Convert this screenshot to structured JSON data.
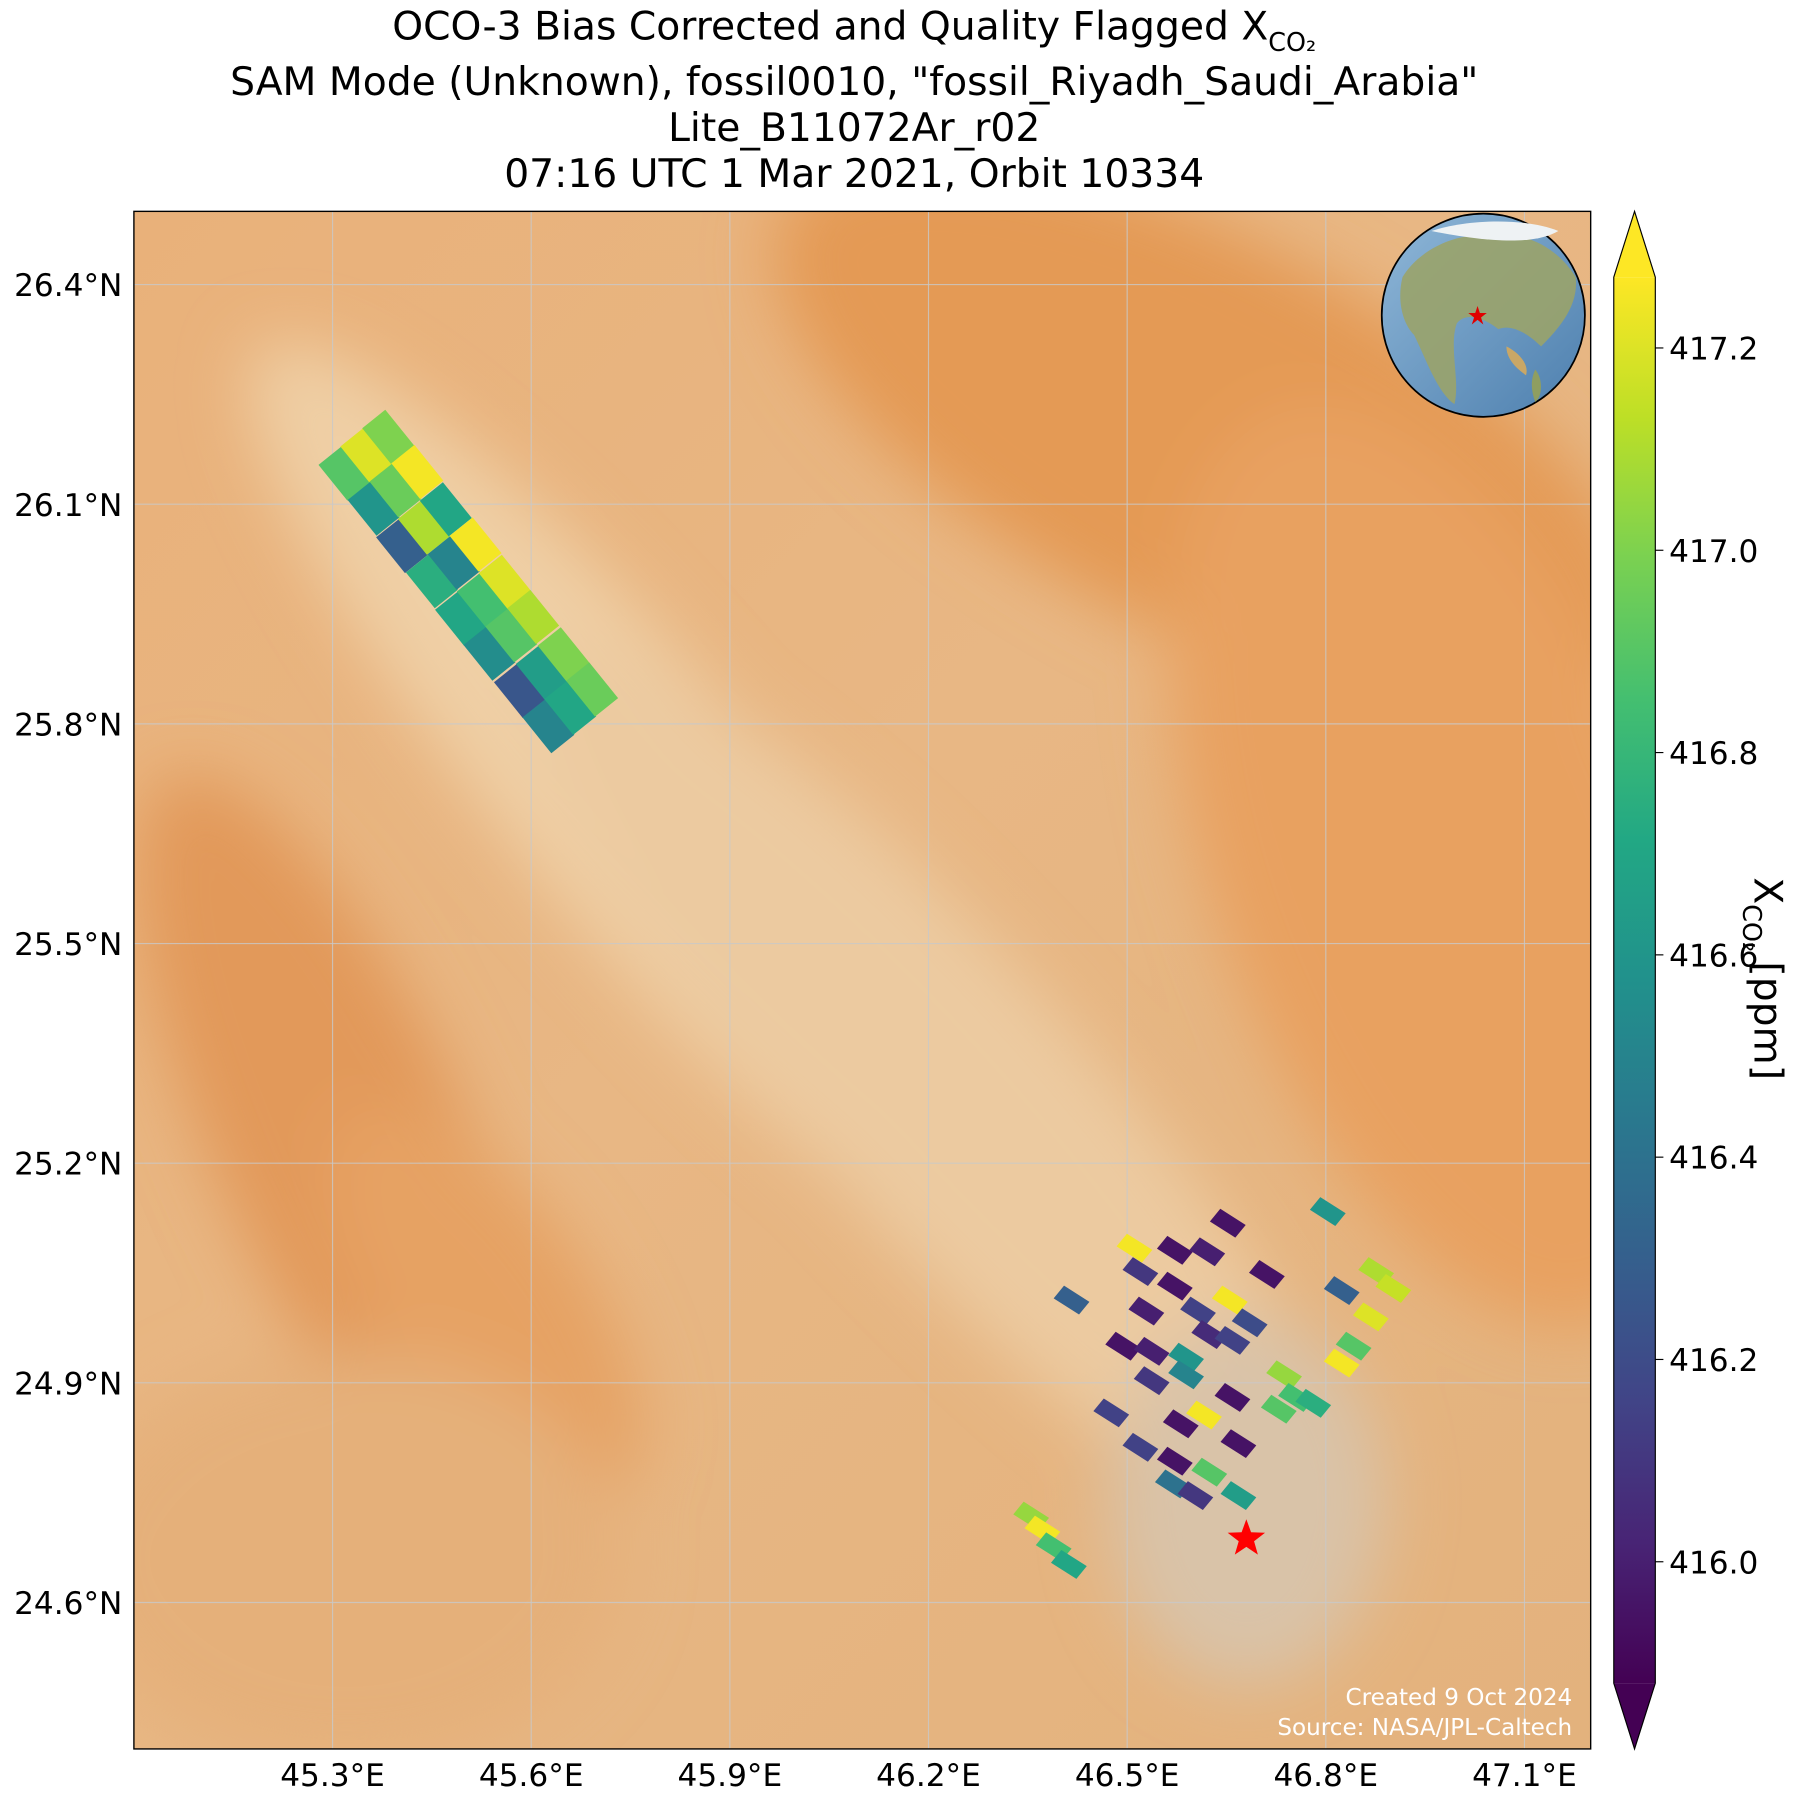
{
  "chart_data": {
    "type": "map",
    "title_lines": [
      "OCO-3 Bias Corrected and Quality Flagged X",
      "SAM Mode (Unknown), fossil0010, \"fossil_Riyadh_Saudi_Arabia\"",
      "Lite_B11072Ar_r02",
      "07:16 UTC 1 Mar 2021, Orbit 10334"
    ],
    "title_subscript": "CO₂",
    "xlim": [
      45.0,
      47.2
    ],
    "ylim": [
      24.4,
      26.5
    ],
    "xticks": [
      {
        "value": 45.3,
        "label": "45.3°E"
      },
      {
        "value": 45.6,
        "label": "45.6°E"
      },
      {
        "value": 45.9,
        "label": "45.9°E"
      },
      {
        "value": 46.2,
        "label": "46.2°E"
      },
      {
        "value": 46.5,
        "label": "46.5°E"
      },
      {
        "value": 46.8,
        "label": "46.8°E"
      },
      {
        "value": 47.1,
        "label": "47.1°E"
      }
    ],
    "yticks": [
      {
        "value": 24.6,
        "label": "24.6°N"
      },
      {
        "value": 24.9,
        "label": "24.9°N"
      },
      {
        "value": 25.2,
        "label": "25.2°N"
      },
      {
        "value": 25.5,
        "label": "25.5°N"
      },
      {
        "value": 25.8,
        "label": "25.8°N"
      },
      {
        "value": 26.1,
        "label": "26.1°N"
      },
      {
        "value": 26.4,
        "label": "26.4°N"
      }
    ],
    "grid": true,
    "colormap": "viridis",
    "clim": [
      415.88,
      417.27
    ],
    "cticks": [
      {
        "value": 416.0,
        "label": "416.0"
      },
      416.2,
      416.4,
      416.6,
      416.8,
      {
        "value": 417.0,
        "label": "417.0"
      },
      417.2
    ],
    "colorbar_label": "X",
    "colorbar_label_subscript": "CO₂",
    "colorbar_label_unit": "[ppm]",
    "swaths": [
      {
        "lon": [
          45.318,
          45.351,
          45.384,
          45.362,
          45.395,
          45.428,
          45.405,
          45.438,
          45.471,
          45.45,
          45.483,
          45.516,
          45.494,
          45.527,
          45.56,
          45.537,
          45.57,
          45.603,
          45.583,
          45.616,
          45.649,
          45.626,
          45.659,
          45.692
        ],
        "lat": [
          26.142,
          26.167,
          26.192,
          26.094,
          26.119,
          26.144,
          26.043,
          26.068,
          26.093,
          25.995,
          26.02,
          26.045,
          25.944,
          25.969,
          25.994,
          25.896,
          25.921,
          25.946,
          25.845,
          25.87,
          25.895,
          25.797,
          25.822,
          25.847
        ],
        "values": [
          416.9,
          417.2,
          417.0,
          416.6,
          416.95,
          417.25,
          416.3,
          417.1,
          416.7,
          416.75,
          416.5,
          417.25,
          416.7,
          416.85,
          417.2,
          416.55,
          416.9,
          417.1,
          416.25,
          416.65,
          417.0,
          416.5,
          416.7,
          416.95
        ]
      },
      {
        "lon": [
          46.652,
          46.511,
          46.572,
          46.621,
          46.803,
          46.52,
          46.572,
          46.711,
          46.876,
          46.902,
          46.416,
          46.607,
          46.655,
          46.824,
          46.529,
          46.624,
          46.685,
          46.868,
          46.494,
          46.537,
          46.659,
          46.589,
          46.842,
          46.737,
          46.824,
          46.537,
          46.589,
          46.755,
          46.781,
          46.729,
          46.659,
          46.581,
          46.616,
          46.476,
          46.668,
          46.52,
          46.572,
          46.624,
          46.569,
          46.668,
          46.603,
          46.355,
          46.372,
          46.389,
          46.412
        ],
        "lat": [
          25.118,
          25.084,
          25.081,
          25.079,
          25.134,
          25.052,
          25.032,
          25.048,
          25.052,
          25.029,
          25.013,
          24.998,
          25.013,
          25.026,
          24.998,
          24.966,
          24.982,
          24.99,
          24.95,
          24.943,
          24.958,
          24.935,
          24.95,
          24.911,
          24.927,
          24.903,
          24.911,
          24.88,
          24.872,
          24.864,
          24.88,
          24.844,
          24.856,
          24.859,
          24.817,
          24.812,
          24.793,
          24.778,
          24.762,
          24.746,
          24.746,
          24.718,
          24.699,
          24.676,
          24.652
        ],
        "values": [
          415.95,
          417.25,
          415.95,
          416.0,
          416.6,
          416.1,
          415.95,
          415.95,
          417.1,
          417.15,
          416.3,
          416.15,
          417.25,
          416.3,
          416.0,
          416.05,
          416.2,
          417.2,
          415.95,
          416.0,
          416.15,
          416.6,
          416.9,
          417.05,
          417.25,
          416.1,
          416.5,
          416.85,
          416.75,
          416.9,
          415.95,
          415.95,
          417.25,
          416.15,
          415.95,
          416.15,
          415.95,
          416.9,
          416.4,
          416.65,
          416.1,
          417.05,
          417.25,
          416.85,
          416.7
        ]
      }
    ],
    "target": {
      "lon": 46.68,
      "lat": 24.687
    },
    "footer": [
      "Created 9 Oct 2024",
      "Source: NASA/JPL-Caltech"
    ]
  }
}
